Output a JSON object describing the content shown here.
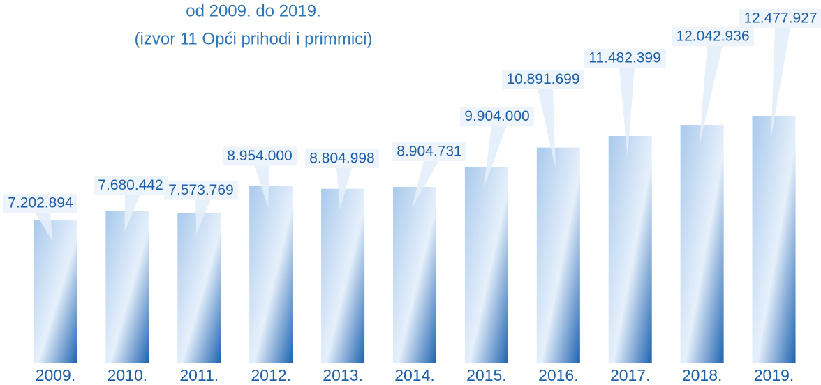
{
  "chart_data": {
    "type": "bar",
    "title": "od 2009. do 2019.",
    "subtitle": "(izvor 11 Opći prihodi i primmici)",
    "categories": [
      "2009.",
      "2010.",
      "2011.",
      "2012.",
      "2013.",
      "2014.",
      "2015.",
      "2016.",
      "2017.",
      "2018.",
      "2019."
    ],
    "values": [
      7202894,
      7680442,
      7573769,
      8954000,
      8804998,
      8904731,
      9904000,
      10891699,
      11482399,
      12042936,
      12477927
    ],
    "value_labels": [
      "7.202.894",
      "7.680.442",
      "7.573.769",
      "8.954.000",
      "8.804.998",
      "8.904.731",
      "9.904.000",
      "10.891.699",
      "11.482.399",
      "12.042.936",
      "12.477.927"
    ],
    "color": "#5b9bd5",
    "ylim": [
      0,
      13000000
    ]
  }
}
